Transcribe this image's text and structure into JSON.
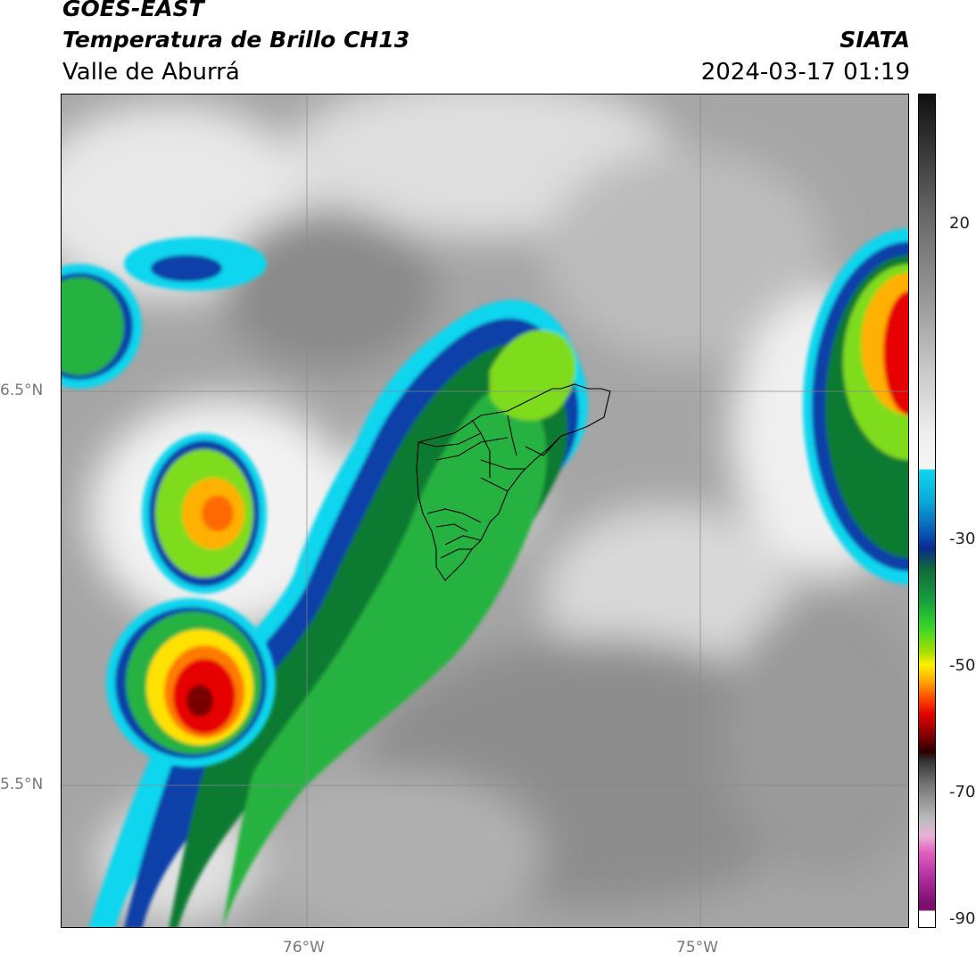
{
  "header": {
    "satellite": "GOES-EAST",
    "product": "Temperatura de Brillo CH13",
    "region": "Valle de Aburrá",
    "agency": "SIATA",
    "timestamp": "2024-03-17 01:19"
  },
  "axes": {
    "lat_labels": [
      "6.5°N",
      "5.5°N"
    ],
    "lon_labels": [
      "76°W",
      "75°W"
    ]
  },
  "colorbar": {
    "ticks": [
      "20",
      "-30",
      "-50",
      "-70",
      "-90"
    ]
  },
  "colors": {
    "cloud_gray": "#9a9a9a",
    "cyan": "#10d6ee",
    "blue": "#0b3fa8",
    "green": "#1fb53a",
    "yellow": "#ffe100",
    "red": "#e60000"
  }
}
